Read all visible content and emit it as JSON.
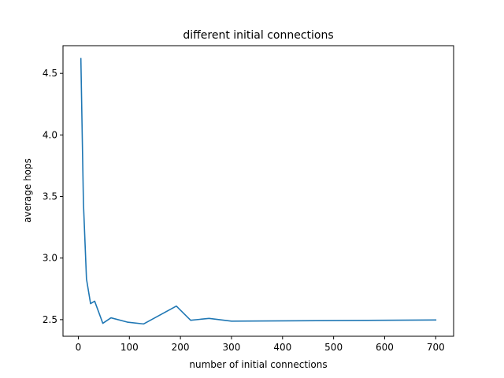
{
  "chart_data": {
    "type": "line",
    "title": "different initial connections",
    "xlabel": "number of initial connections",
    "ylabel": "average hops",
    "xlim": [
      -30,
      735
    ],
    "ylim": [
      2.365,
      4.725
    ],
    "xticks": [
      0,
      100,
      200,
      300,
      400,
      500,
      600,
      700
    ],
    "yticks": [
      2.5,
      3.0,
      3.5,
      4.0,
      4.5
    ],
    "xtick_labels": [
      "0",
      "100",
      "200",
      "300",
      "400",
      "500",
      "600",
      "700"
    ],
    "ytick_labels": [
      "2.5",
      "3.0",
      "3.5",
      "4.0",
      "4.5"
    ],
    "grid": false,
    "legend": "none",
    "series": [
      {
        "color": "#1f77b4",
        "x": [
          5,
          10,
          16,
          24,
          32,
          48,
          64,
          96,
          128,
          192,
          220,
          256,
          300,
          700
        ],
        "y": [
          4.62,
          3.45,
          2.83,
          2.63,
          2.65,
          2.47,
          2.515,
          2.48,
          2.465,
          2.61,
          2.495,
          2.51,
          2.488,
          2.497
        ]
      }
    ]
  }
}
